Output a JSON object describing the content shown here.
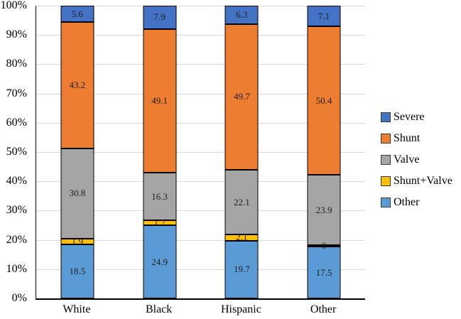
{
  "chart_data": {
    "type": "bar",
    "subtype": "100%-stacked-column",
    "title": "",
    "categories": [
      "White",
      "Black",
      "Hispanic",
      "Other"
    ],
    "series": [
      {
        "name": "Other",
        "color": "#5B9BD5",
        "values": [
          18.5,
          24.9,
          19.7,
          17.5
        ]
      },
      {
        "name": "Shunt+Valve",
        "color": "#FFC000",
        "values": [
          1.9,
          1.7,
          2.1,
          0
        ]
      },
      {
        "name": "Valve",
        "color": "#A5A5A5",
        "values": [
          30.8,
          16.3,
          22.1,
          23.9
        ]
      },
      {
        "name": "Shunt",
        "color": "#ED7D31",
        "values": [
          43.2,
          49.1,
          49.7,
          50.4
        ]
      },
      {
        "name": "Severe",
        "color": "#4472C4",
        "values": [
          5.6,
          7.9,
          6.3,
          7.1
        ]
      }
    ],
    "legend": {
      "position": "right",
      "entries": [
        {
          "label": "Severe",
          "color": "#4472C4"
        },
        {
          "label": "Shunt",
          "color": "#ED7D31"
        },
        {
          "label": "Valve",
          "color": "#A5A5A5"
        },
        {
          "label": "Shunt+Valve",
          "color": "#FFC000"
        },
        {
          "label": "Other",
          "color": "#5B9BD5"
        }
      ]
    },
    "y_axis": {
      "min": 0,
      "max": 100,
      "tick_step": 10,
      "ticks": [
        "100%",
        "90%",
        "80%",
        "70%",
        "60%",
        "50%",
        "40%",
        "30%",
        "20%",
        "10%",
        "0%"
      ],
      "grid": true
    },
    "x_axis": {
      "labels": [
        "White",
        "Black",
        "Hispanic",
        "Other"
      ]
    },
    "colors": {
      "grid": "#D9D9D9",
      "axis": "#000000",
      "bar_border": "#000000",
      "label_text": "#1F1F1F"
    }
  }
}
